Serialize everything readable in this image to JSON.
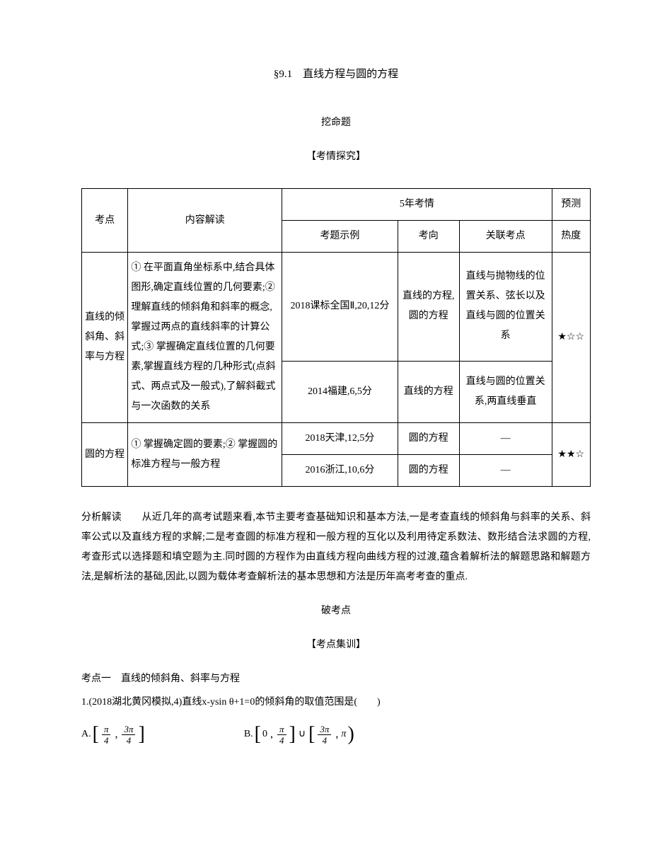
{
  "title": "§9.1　直线方程与圆的方程",
  "heading1": "挖命题",
  "heading2": "【考情探究】",
  "table": {
    "header": {
      "kaodian": "考点",
      "neirong": "内容解读",
      "wunian": "5年考情",
      "yuce": "预测",
      "kaoti": "考题示例",
      "kaoxiang": "考向",
      "guanlian": "关联考点",
      "redu": "热度"
    },
    "row1": {
      "topic": "直线的倾斜角、斜率与方程",
      "content": "① 在平面直角坐标系中,结合具体图形,确定直线位置的几何要素;② 理解直线的倾斜角和斜率的概念,掌握过两点的直线斜率的计算公式;③ 掌握确定直线位置的几何要素,掌握直线方程的几种形式(点斜式、两点式及一般式),了解斜截式与一次函数的关系",
      "example1": "2018课标全国Ⅱ,20,12分",
      "direction1": "直线的方程,圆的方程",
      "related1": "直线与抛物线的位置关系、弦长以及直线与圆的位置关系",
      "example2": "2014福建,6,5分",
      "direction2": "直线的方程",
      "related2": "直线与圆的位置关系,两直线垂直",
      "heat": "★☆☆"
    },
    "row2": {
      "topic": "圆的方程",
      "content": "① 掌握确定圆的要素;② 掌握圆的标准方程与一般方程",
      "example1": "2018天津,12,5分",
      "direction1": "圆的方程",
      "related1": "—",
      "example2": "2016浙江,10,6分",
      "direction2": "圆的方程",
      "related2": "—",
      "heat": "★★☆"
    }
  },
  "analysis_label": "分析解读",
  "analysis_text": "　　从近几年的高考试题来看,本节主要考查基础知识和基本方法,一是考查直线的倾斜角与斜率的关系、斜率公式以及直线方程的求解;二是考查圆的标准方程和一般方程的互化以及利用待定系数法、数形结合法求圆的方程,考查形式以选择题和填空题为主.同时圆的方程作为由直线方程向曲线方程的过渡,蕴含着解析法的解题思路和解题方法,是解析法的基础,因此,以圆为载体考查解析法的基本思想和方法是历年高考考查的重点.",
  "heading3": "破考点",
  "heading4": "【考点集训】",
  "kaodian1": "考点一　直线的倾斜角、斜率与方程",
  "question1": "1.(2018湖北黄冈模拟,4)直线x-ysin θ+1=0的倾斜角的取值范围是(　　)",
  "options": {
    "a_label": "A.",
    "b_label": "B.",
    "zero": "0",
    "pi": "π",
    "pi4_num": "π",
    "pi4_den": "4",
    "pi3_num": "3π",
    "pi3_den": "4"
  }
}
